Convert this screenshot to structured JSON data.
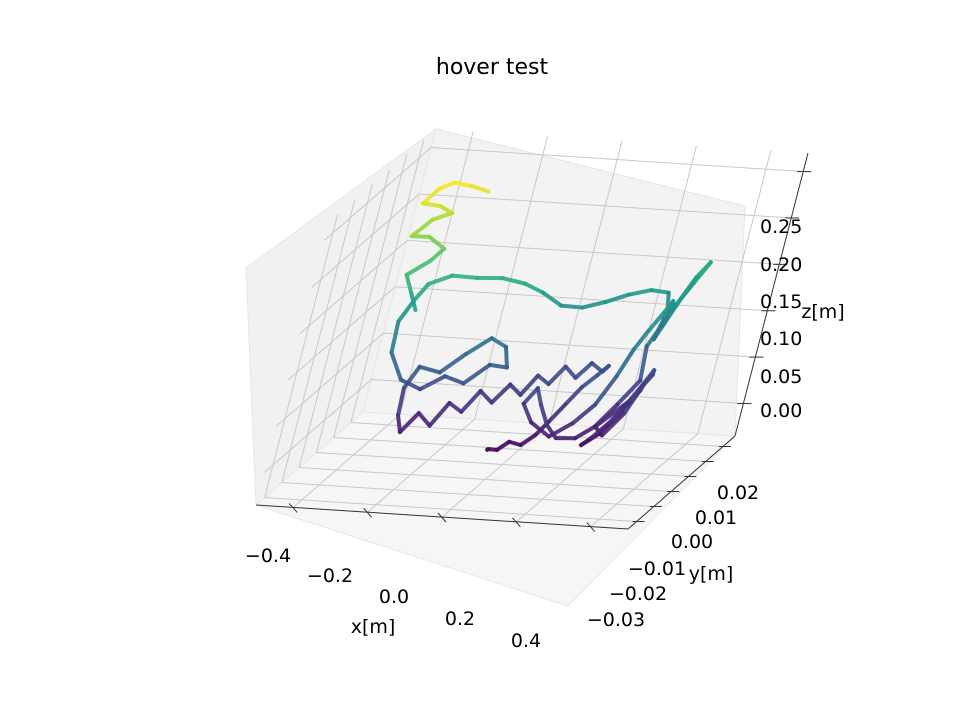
{
  "chart_data": {
    "type": "line3d",
    "title": "hover test",
    "xlabel": "x[m]",
    "ylabel": "y[m]",
    "zlabel": "z[m]",
    "x_ticks": [
      "−0.4",
      "−0.2",
      "0.0",
      "0.2",
      "0.4"
    ],
    "y_ticks": [
      "−0.03",
      "−0.02",
      "−0.01",
      "0.00",
      "0.01",
      "0.02"
    ],
    "z_ticks": [
      "0.00",
      "0.05",
      "0.10",
      "0.15",
      "0.20",
      "0.25"
    ],
    "xlim": [
      -0.5,
      0.5
    ],
    "ylim": [
      -0.035,
      0.027
    ],
    "zlim": [
      -0.035,
      0.27
    ],
    "grid": true,
    "colormap": "viridis",
    "series": [
      {
        "points": [
          [
            -0.008,
            -0.012,
            0.0
          ],
          [
            0.005,
            -0.015,
            0.006
          ],
          [
            0.025,
            -0.014,
            0.004
          ],
          [
            0.045,
            -0.012,
            0.01
          ],
          [
            0.07,
            -0.01,
            0.004
          ],
          [
            0.095,
            -0.008,
            0.012
          ],
          [
            0.115,
            -0.006,
            0.024
          ],
          [
            0.14,
            -0.004,
            0.04
          ],
          [
            0.165,
            -0.002,
            0.056
          ],
          [
            0.19,
            0.0,
            0.066
          ],
          [
            0.2,
            0.004,
            0.07
          ],
          [
            0.18,
            0.006,
            0.06
          ],
          [
            0.15,
            0.005,
            0.07
          ],
          [
            0.12,
            0.004,
            0.055
          ],
          [
            0.09,
            0.003,
            0.068
          ],
          [
            0.06,
            0.002,
            0.05
          ],
          [
            0.03,
            0.001,
            0.06
          ],
          [
            0.0,
            0.0,
            0.04
          ],
          [
            -0.03,
            -0.001,
            0.052
          ],
          [
            -0.06,
            -0.003,
            0.035
          ],
          [
            -0.09,
            -0.005,
            0.05
          ],
          [
            -0.12,
            -0.007,
            0.03
          ],
          [
            -0.15,
            -0.009,
            0.042
          ],
          [
            -0.18,
            -0.011,
            0.02
          ],
          [
            -0.21,
            -0.013,
            0.036
          ],
          [
            -0.24,
            -0.015,
            0.018
          ],
          [
            -0.26,
            -0.014,
            0.034
          ],
          [
            -0.27,
            -0.012,
            0.06
          ],
          [
            -0.25,
            -0.01,
            0.08
          ],
          [
            -0.2,
            -0.008,
            0.072
          ],
          [
            -0.15,
            -0.006,
            0.09
          ],
          [
            -0.1,
            -0.004,
            0.105
          ],
          [
            -0.06,
            -0.003,
            0.095
          ],
          [
            -0.04,
            -0.004,
            0.075
          ],
          [
            -0.08,
            -0.006,
            0.08
          ],
          [
            -0.13,
            -0.008,
            0.062
          ],
          [
            -0.18,
            -0.009,
            0.07
          ],
          [
            -0.23,
            -0.011,
            0.058
          ],
          [
            -0.28,
            -0.013,
            0.07
          ],
          [
            -0.32,
            -0.014,
            0.1
          ],
          [
            -0.33,
            -0.012,
            0.13
          ],
          [
            -0.31,
            -0.01,
            0.15
          ],
          [
            -0.29,
            -0.008,
            0.165
          ],
          [
            -0.24,
            -0.006,
            0.172
          ],
          [
            -0.18,
            -0.004,
            0.168
          ],
          [
            -0.12,
            -0.002,
            0.166
          ],
          [
            -0.06,
            -0.001,
            0.16
          ],
          [
            -0.01,
            0.0,
            0.15
          ],
          [
            0.04,
            0.002,
            0.134
          ],
          [
            0.09,
            0.004,
            0.13
          ],
          [
            0.14,
            0.006,
            0.134
          ],
          [
            0.19,
            0.008,
            0.14
          ],
          [
            0.24,
            0.01,
            0.143
          ],
          [
            0.28,
            0.012,
            0.138
          ],
          [
            0.3,
            0.01,
            0.115
          ],
          [
            0.28,
            0.006,
            0.09
          ],
          [
            0.3,
            0.002,
            0.06
          ],
          [
            0.27,
            -0.002,
            0.04
          ],
          [
            0.24,
            -0.006,
            0.022
          ],
          [
            0.275,
            -0.009,
            0.018
          ],
          [
            0.305,
            -0.005,
            0.036
          ],
          [
            0.32,
            0.0,
            0.06
          ],
          [
            0.3,
            0.004,
            0.046
          ],
          [
            0.28,
            0.0,
            0.03
          ],
          [
            0.255,
            -0.006,
            0.014
          ],
          [
            0.23,
            -0.01,
            0.008
          ],
          [
            0.26,
            -0.012,
            0.02
          ],
          [
            0.29,
            -0.01,
            0.034
          ],
          [
            0.31,
            -0.004,
            0.05
          ],
          [
            0.33,
            0.002,
            0.072
          ],
          [
            0.315,
            0.006,
            0.06
          ],
          [
            0.29,
            0.0,
            0.04
          ],
          [
            0.25,
            -0.008,
            0.026
          ],
          [
            0.22,
            -0.013,
            0.02
          ],
          [
            0.18,
            -0.016,
            0.024
          ],
          [
            0.14,
            -0.014,
            0.034
          ],
          [
            0.1,
            -0.011,
            0.05
          ],
          [
            0.07,
            -0.008,
            0.062
          ],
          [
            0.05,
            -0.01,
            0.048
          ],
          [
            0.09,
            -0.012,
            0.032
          ],
          [
            0.15,
            -0.013,
            0.02
          ],
          [
            0.2,
            -0.012,
            0.034
          ],
          [
            0.24,
            -0.01,
            0.052
          ],
          [
            0.27,
            -0.008,
            0.08
          ],
          [
            0.29,
            -0.006,
            0.106
          ],
          [
            0.31,
            -0.004,
            0.124
          ],
          [
            0.33,
            -0.002,
            0.14
          ],
          [
            0.34,
            0.0,
            0.15
          ],
          [
            0.33,
            0.003,
            0.142
          ],
          [
            0.31,
            0.005,
            0.122
          ],
          [
            0.29,
            0.007,
            0.096
          ],
          [
            0.3,
            0.009,
            0.11
          ],
          [
            0.32,
            0.011,
            0.134
          ],
          [
            0.345,
            0.013,
            0.158
          ],
          [
            0.36,
            0.015,
            0.168
          ],
          [
            0.34,
            0.012,
            0.15
          ],
          [
            0.31,
            0.008,
            0.124
          ],
          [
            0.33,
            0.006,
            0.136
          ],
          [
            0.35,
            0.01,
            0.16
          ]
        ]
      },
      {
        "points": [
          [
            -0.3,
            -0.01,
            0.14
          ],
          [
            -0.32,
            -0.011,
            0.16
          ],
          [
            -0.34,
            -0.012,
            0.18
          ],
          [
            -0.3,
            -0.008,
            0.19
          ],
          [
            -0.28,
            -0.006,
            0.2
          ],
          [
            -0.32,
            -0.008,
            0.215
          ],
          [
            -0.36,
            -0.01,
            0.218
          ],
          [
            -0.33,
            -0.006,
            0.23
          ],
          [
            -0.29,
            -0.004,
            0.235
          ],
          [
            -0.32,
            -0.006,
            0.245
          ],
          [
            -0.36,
            -0.008,
            0.25
          ],
          [
            -0.34,
            -0.004,
            0.26
          ],
          [
            -0.31,
            -0.002,
            0.264
          ],
          [
            -0.27,
            0.0,
            0.258
          ],
          [
            -0.23,
            0.002,
            0.25
          ]
        ]
      }
    ]
  }
}
